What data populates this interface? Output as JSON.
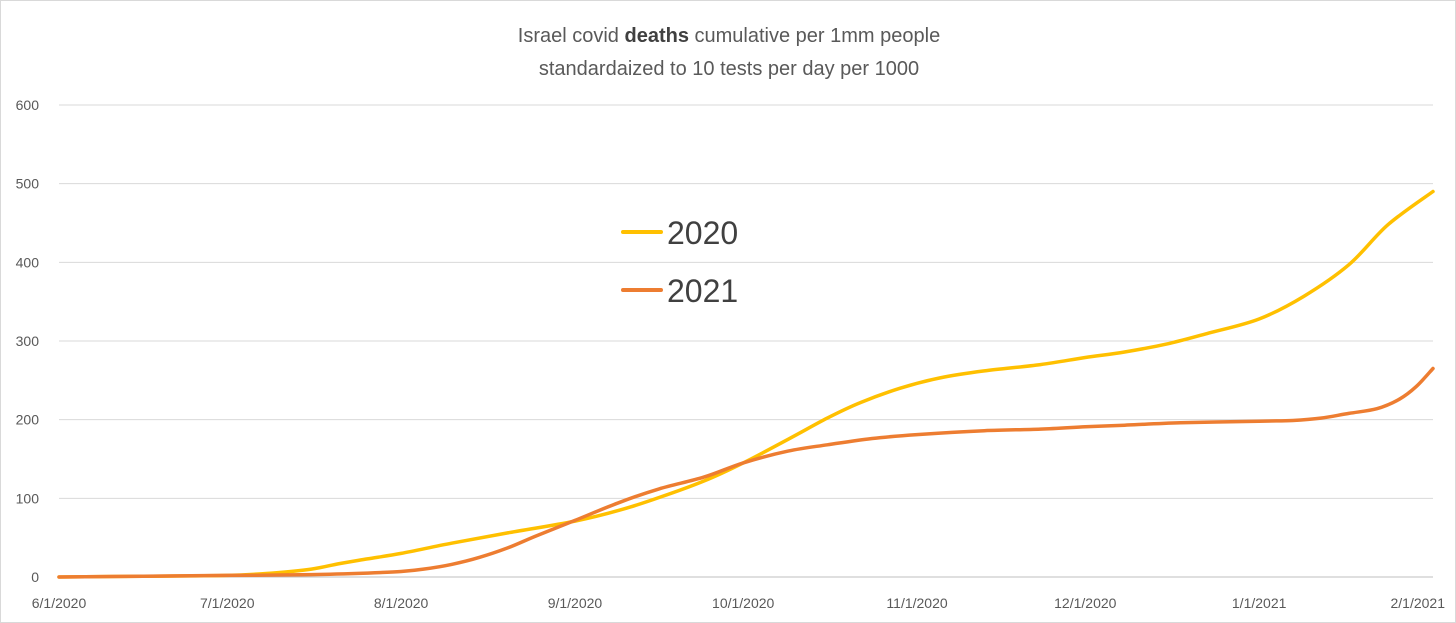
{
  "chart_data": {
    "type": "line",
    "title_parts": {
      "line1_before": "Israel covid ",
      "line1_bold": "deaths",
      "line1_after": " cumulative per 1mm people",
      "line2": "standardaized to 10 tests per day per 1000"
    },
    "xlabel": "",
    "ylabel": "",
    "ylim": [
      0,
      600
    ],
    "y_ticks": [
      "0",
      "100",
      "200",
      "300",
      "400",
      "500",
      "600"
    ],
    "x_tick_labels": [
      "6/1/2020",
      "7/1/2020",
      "8/1/2020",
      "9/1/2020",
      "10/1/2020",
      "11/1/2020",
      "12/1/2020",
      "1/1/2021",
      "2/1/2021"
    ],
    "x_ticks_days": [
      0,
      30,
      61,
      92,
      122,
      153,
      183,
      214,
      245
    ],
    "x_range_days": [
      0,
      245
    ],
    "grid": true,
    "legend_position": "center-left",
    "series": [
      {
        "name": "2020",
        "color": "#ffc000",
        "x": [
          0,
          15,
          30,
          38,
          45,
          50,
          55,
          61,
          70,
          80,
          92,
          100,
          107,
          115,
          122,
          130,
          137,
          143,
          150,
          157,
          165,
          175,
          183,
          190,
          198,
          205,
          214,
          222,
          230,
          237,
          245
        ],
        "y": [
          0,
          1,
          2,
          5,
          10,
          17,
          23,
          30,
          43,
          56,
          71,
          85,
          101,
          122,
          145,
          175,
          202,
          222,
          240,
          253,
          262,
          270,
          279,
          286,
          297,
          310,
          328,
          357,
          397,
          448,
          490
        ]
      },
      {
        "name": "2021",
        "color": "#ed7d31",
        "x": [
          0,
          15,
          30,
          45,
          55,
          61,
          65,
          70,
          75,
          80,
          85,
          92,
          100,
          107,
          115,
          122,
          130,
          137,
          145,
          153,
          165,
          175,
          183,
          190,
          200,
          214,
          220,
          225,
          230,
          235,
          239,
          242,
          245
        ],
        "y": [
          0,
          1,
          2,
          3,
          5,
          7,
          10,
          16,
          25,
          37,
          52,
          72,
          95,
          112,
          127,
          145,
          160,
          168,
          176,
          181,
          186,
          188,
          191,
          193,
          196,
          198,
          199,
          202,
          208,
          214,
          226,
          242,
          265
        ]
      }
    ]
  }
}
